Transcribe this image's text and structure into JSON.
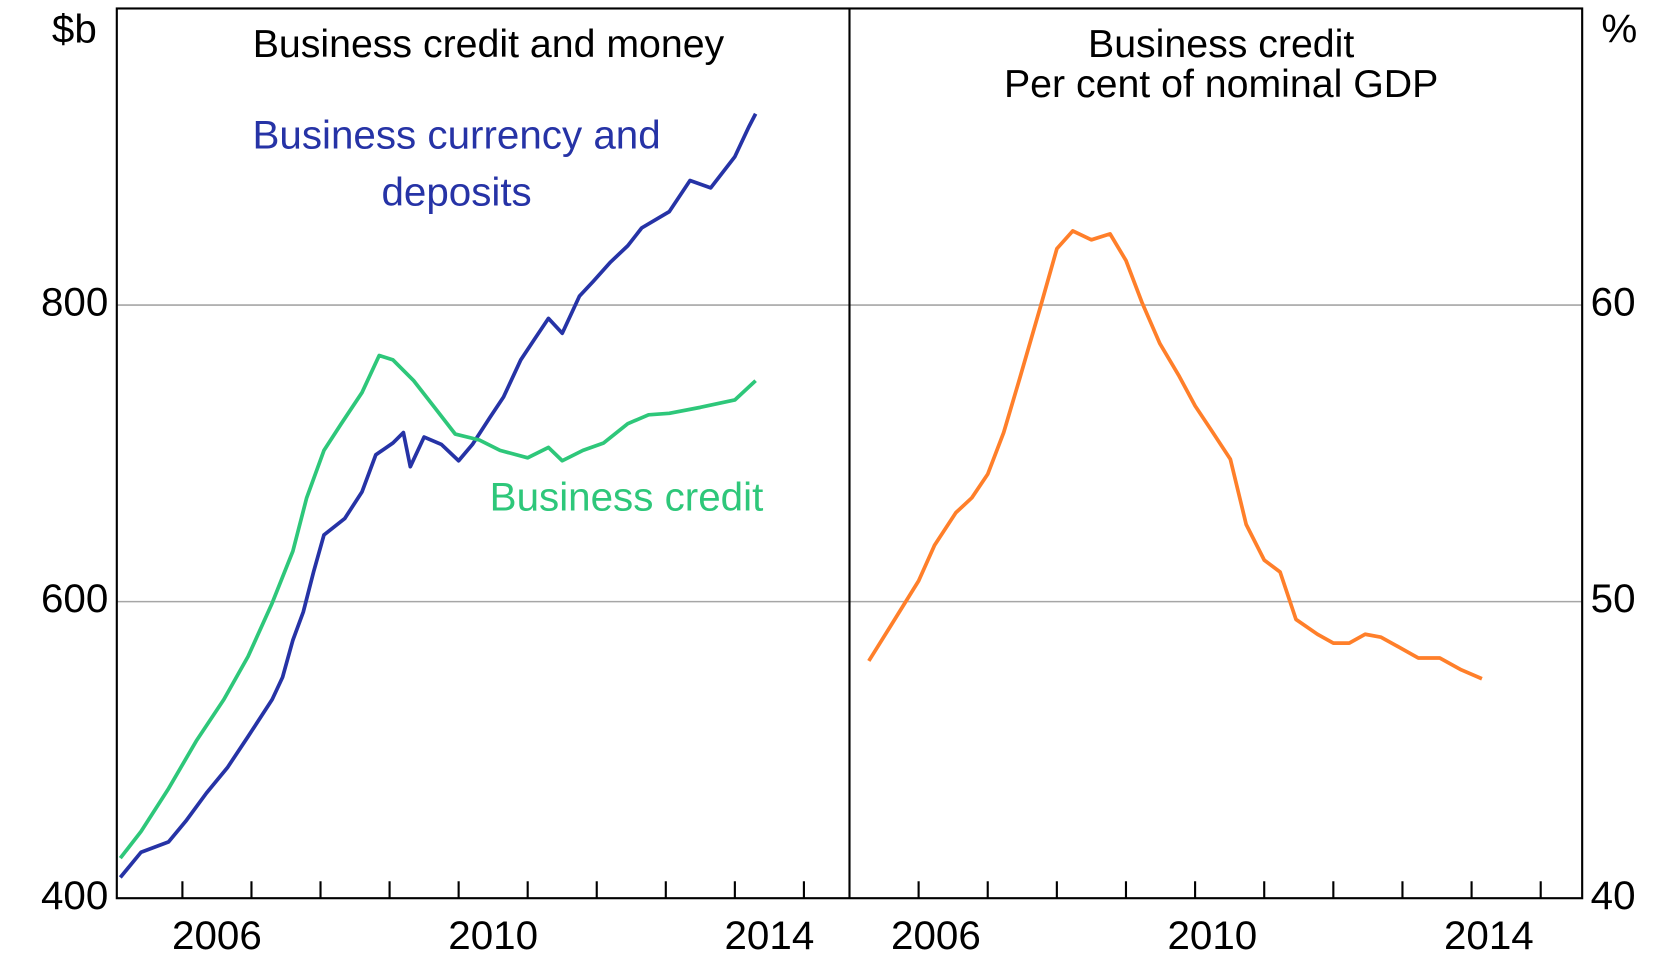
{
  "chart_data": [
    {
      "type": "line",
      "title": "Business credit and money",
      "ylabel": "$b",
      "xlim": [
        2005.05,
        2015.66
      ],
      "ylim": [
        400,
        1000
      ],
      "yticks": [
        400,
        600,
        800
      ],
      "grid": true,
      "xminor": [
        2006,
        2007,
        2008,
        2009,
        2010,
        2011,
        2012,
        2013,
        2014,
        2015
      ],
      "xticks": [
        {
          "value": 2006.5,
          "label": "2006"
        },
        {
          "value": 2010.5,
          "label": "2010"
        },
        {
          "value": 2014.5,
          "label": "2014"
        }
      ],
      "series": [
        {
          "name": "Business currency and deposits",
          "color": "#2633a6",
          "x": [
            2005.1,
            2005.4,
            2005.8,
            2006.05,
            2006.35,
            2006.65,
            2006.95,
            2007.3,
            2007.45,
            2007.6,
            2007.75,
            2007.9,
            2008.05,
            2008.35,
            2008.6,
            2008.8,
            2009.05,
            2009.2,
            2009.3,
            2009.5,
            2009.75,
            2010.0,
            2010.2,
            2010.45,
            2010.65,
            2010.9,
            2011.1,
            2011.3,
            2011.5,
            2011.75,
            2011.95,
            2012.2,
            2012.45,
            2012.65,
            2013.05,
            2013.35,
            2013.65,
            2014.0,
            2014.2,
            2014.3
          ],
          "values": [
            414,
            431,
            438,
            452,
            471,
            488,
            509,
            534,
            549,
            574,
            593,
            620,
            645,
            656,
            674,
            699,
            707,
            714,
            691,
            711,
            706,
            695,
            706,
            724,
            738,
            763,
            777,
            791,
            781,
            806,
            816,
            829,
            840,
            852,
            863,
            884,
            879,
            900,
            920,
            929
          ]
        },
        {
          "name": "Business credit",
          "color": "#2ec77a",
          "x": [
            2005.1,
            2005.4,
            2005.8,
            2006.2,
            2006.6,
            2006.95,
            2007.3,
            2007.6,
            2007.8,
            2008.05,
            2008.3,
            2008.6,
            2008.85,
            2009.05,
            2009.35,
            2009.65,
            2009.95,
            2010.3,
            2010.6,
            2011.0,
            2011.3,
            2011.5,
            2011.8,
            2012.1,
            2012.45,
            2012.75,
            2013.05,
            2013.5,
            2014.0,
            2014.3
          ],
          "values": [
            427,
            445,
            474,
            506,
            534,
            563,
            599,
            634,
            670,
            702,
            720,
            741,
            766,
            763,
            749,
            731,
            713,
            709,
            702,
            697,
            704,
            695,
            702,
            707,
            720,
            726,
            727,
            731,
            736,
            749
          ]
        }
      ]
    },
    {
      "type": "line",
      "title": "Business credit",
      "subtitle": "Per cent of nominal GDP",
      "ylabel": "%",
      "xlim": [
        2005.0,
        2015.6
      ],
      "ylim": [
        40,
        70
      ],
      "yticks": [
        40,
        50,
        60
      ],
      "grid": true,
      "xminor": [
        2006,
        2007,
        2008,
        2009,
        2010,
        2011,
        2012,
        2013,
        2014,
        2015
      ],
      "xticks": [
        {
          "value": 2006.25,
          "label": "2006"
        },
        {
          "value": 2010.25,
          "label": "2010"
        },
        {
          "value": 2014.25,
          "label": "2014"
        }
      ],
      "series": [
        {
          "color": "#ff7f2a",
          "x": [
            2005.28,
            2005.6,
            2006.0,
            2006.23,
            2006.54,
            2006.77,
            2007.0,
            2007.23,
            2007.46,
            2007.77,
            2008.0,
            2008.23,
            2008.5,
            2008.77,
            2009.0,
            2009.23,
            2009.49,
            2009.77,
            2010.0,
            2010.23,
            2010.51,
            2010.74,
            2011.0,
            2011.23,
            2011.46,
            2011.77,
            2012.0,
            2012.23,
            2012.46,
            2012.69,
            2013.0,
            2013.23,
            2013.54,
            2013.85,
            2014.15
          ],
          "values": [
            48.0,
            49.2,
            50.7,
            51.9,
            53.0,
            53.5,
            54.3,
            55.7,
            57.5,
            60.0,
            61.9,
            62.5,
            62.2,
            62.4,
            61.5,
            60.1,
            58.7,
            57.6,
            56.6,
            55.8,
            54.8,
            52.6,
            51.4,
            51.0,
            49.4,
            48.9,
            48.6,
            48.6,
            48.9,
            48.8,
            48.4,
            48.1,
            48.1,
            47.7,
            47.4
          ]
        }
      ]
    }
  ]
}
